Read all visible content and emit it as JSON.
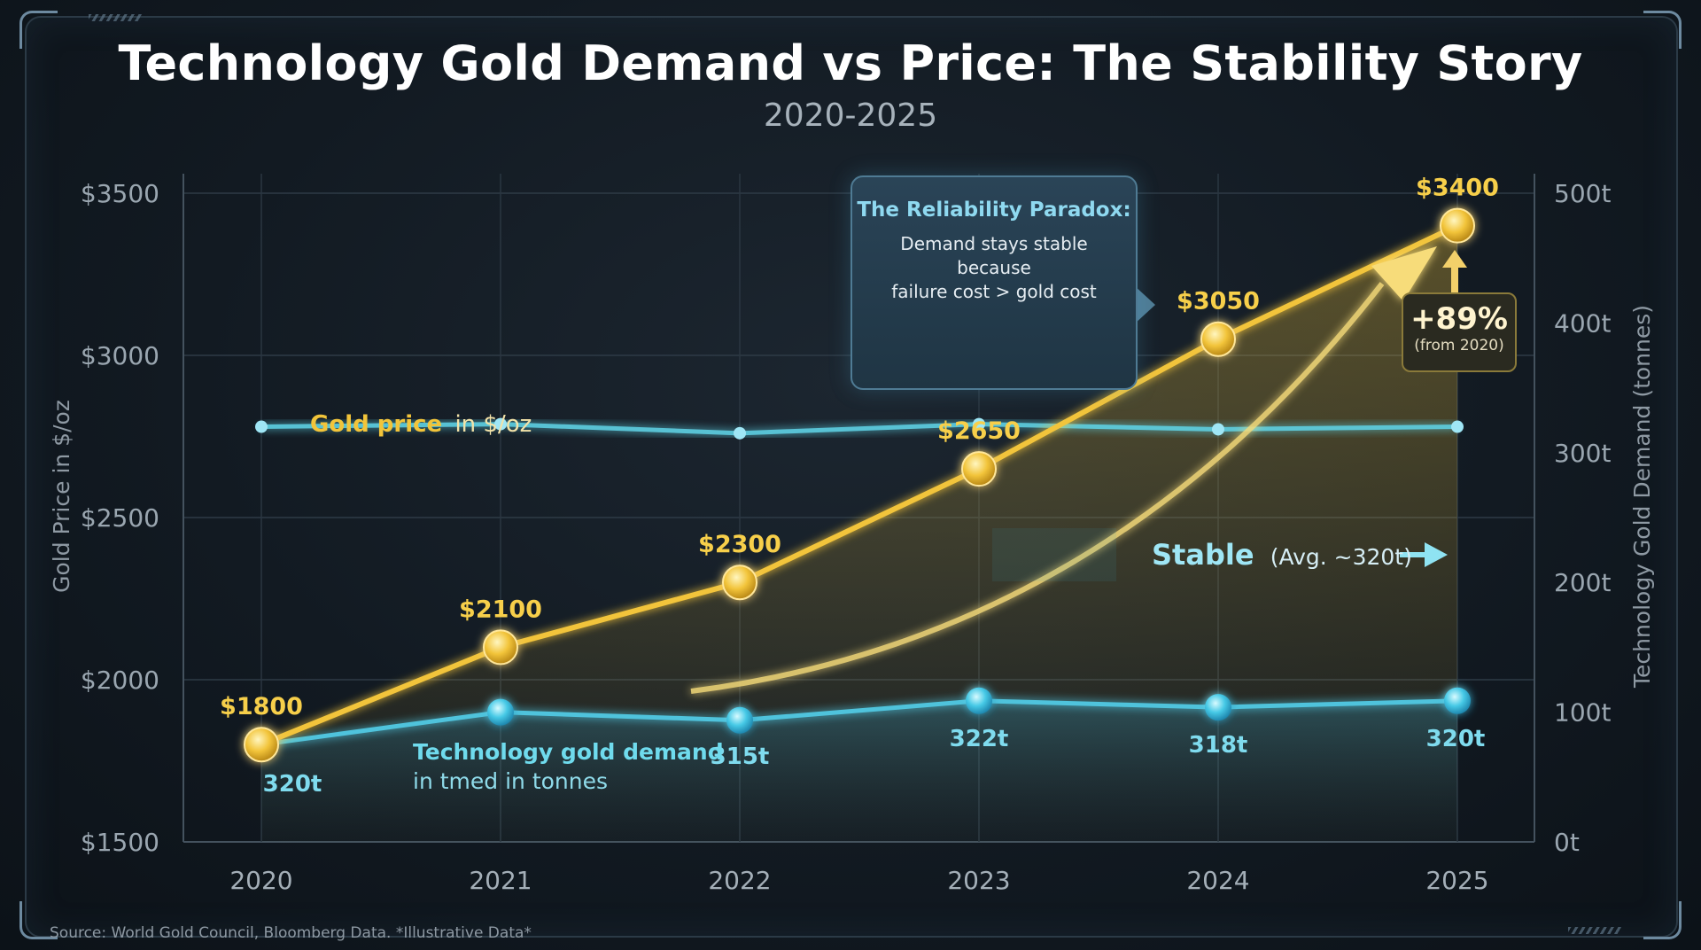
{
  "header": {
    "title": "Technology Gold Demand vs Price: The Stability Story",
    "subtitle": "2020-2025"
  },
  "chart_data": {
    "type": "line",
    "title": "Technology Gold Demand vs Price: The Stability Story",
    "subtitle": "2020-2025",
    "categories": [
      "2020",
      "2021",
      "2022",
      "2023",
      "2024",
      "2025"
    ],
    "ylabel_left": "Gold Price in $/oz",
    "ylabel_right": "Technology Gold Demand (tonnes)",
    "ylim_left": [
      1500,
      3500
    ],
    "ylim_right": [
      0,
      500
    ],
    "yticks_left": [
      "$3500",
      "$3000",
      "$2500",
      "$2000",
      "$1500"
    ],
    "yticks_left_values": [
      3500,
      3000,
      2500,
      2000,
      1500
    ],
    "yticks_right": [
      "500t",
      "400t",
      "300t",
      "200t",
      "100t",
      "0t"
    ],
    "yticks_right_values": [
      500,
      400,
      300,
      200,
      100,
      0
    ],
    "grid": true,
    "series": [
      {
        "name": "Gold price",
        "axis": "left",
        "color": "#f2c43a",
        "values": [
          1800,
          2100,
          2300,
          2650,
          3050,
          3400
        ],
        "labels": [
          "$1800",
          "$2100",
          "$2300",
          "$2650",
          "$3050",
          "$3400"
        ]
      },
      {
        "name": "Technology gold demand",
        "axis": "right",
        "color": "#5fd3e6",
        "values": [
          320,
          322,
          315,
          322,
          318,
          320
        ],
        "labels": [
          "320t",
          "",
          "315t",
          "322t",
          "318t",
          "320t"
        ]
      },
      {
        "name": "Technology gold demand (lower trace)",
        "axis": "left",
        "color": "#4fc3dc",
        "values": [
          1800,
          1900,
          1875,
          1935,
          1915,
          1935
        ]
      }
    ],
    "legend": {
      "price_bold": "Gold price",
      "price_rest": "in $/oz",
      "demand_bold": "Technology gold demand",
      "demand_rest": "in tmed in tonnes"
    },
    "annotations": {
      "stable_bold": "Stable",
      "stable_rest": "(Avg. ~320t)",
      "growth_big": "+89%",
      "growth_small": "(from 2020)"
    }
  },
  "callout": {
    "title": "The Reliability Paradox:",
    "line1": "Demand stays stable because",
    "line2": "failure cost > gold cost",
    "icons": [
      "chip-icon",
      "arrow-right-icon",
      "server-icon",
      "error-x-icon"
    ]
  },
  "footer": {
    "source": "Source: World Gold Council, Bloomberg Data. *Illustrative Data*"
  },
  "colors": {
    "gold": "#f2c43a",
    "cyan": "#5fd3e6",
    "grid": "#2f3c47",
    "axis_text": "#9aa6b0"
  }
}
